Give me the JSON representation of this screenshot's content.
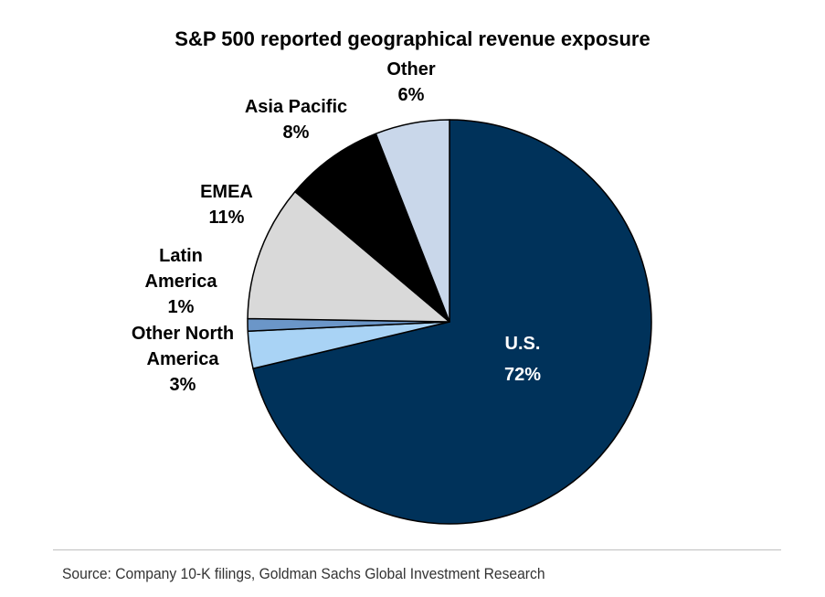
{
  "chart_data": {
    "type": "pie",
    "title": "S&P 500 reported geographical revenue exposure",
    "start_angle_deg": 0,
    "direction": "clockwise",
    "slices": [
      {
        "label_lines": [
          "U.S.",
          "72%"
        ],
        "value": 72,
        "color": "#00325a",
        "label_color": "#ffffff",
        "label_position": "inside"
      },
      {
        "label_lines": [
          "Other North",
          "America",
          "3%"
        ],
        "value": 3,
        "color": "#a9d3f5",
        "label_color": "#000000",
        "label_position": "outside"
      },
      {
        "label_lines": [
          "Latin",
          "America",
          "1%"
        ],
        "value": 1,
        "color": "#6b96c8",
        "label_color": "#000000",
        "label_position": "outside"
      },
      {
        "label_lines": [
          "EMEA",
          "11%"
        ],
        "value": 11,
        "color": "#d9d9d9",
        "label_color": "#000000",
        "label_position": "outside"
      },
      {
        "label_lines": [
          "Asia Pacific",
          "8%"
        ],
        "value": 8,
        "color": "#000000",
        "label_color": "#000000",
        "label_position": "outside"
      },
      {
        "label_lines": [
          "Other",
          "6%"
        ],
        "value": 6,
        "color": "#c9d7ea",
        "label_color": "#000000",
        "label_position": "outside"
      }
    ],
    "source": "Source: Company 10-K filings, Goldman Sachs Global Investment Research"
  }
}
